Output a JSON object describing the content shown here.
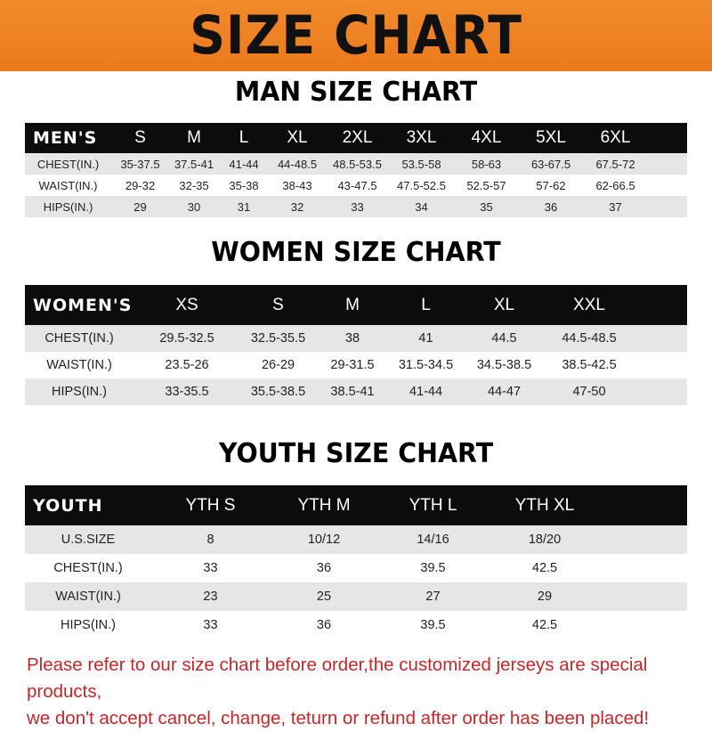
{
  "banner_title": "SIZE CHART",
  "men": {
    "title": "MAN SIZE CHART",
    "header": [
      "MEN'S",
      "S",
      "M",
      "L",
      "XL",
      "2XL",
      "3XL",
      "4XL",
      "5XL",
      "6XL"
    ],
    "rows": [
      [
        "CHEST(IN.)",
        "35-37.5",
        "37.5-41",
        "41-44",
        "44-48.5",
        "48.5-53.5",
        "53.5-58",
        "58-63",
        "63-67.5",
        "67.5-72"
      ],
      [
        "WAIST(IN.)",
        "29-32",
        "32-35",
        "35-38",
        "38-43",
        "43-47.5",
        "47.5-52.5",
        "52.5-57",
        "57-62",
        "62-66.5"
      ],
      [
        "HIPS(IN.)",
        "29",
        "30",
        "31",
        "32",
        "33",
        "34",
        "35",
        "36",
        "37"
      ]
    ]
  },
  "women": {
    "title": "WOMEN SIZE CHART",
    "header": [
      "WOMEN'S",
      "XS",
      "S",
      "M",
      "L",
      "XL",
      "XXL"
    ],
    "rows": [
      [
        "CHEST(IN.)",
        "29.5-32.5",
        "32.5-35.5",
        "38",
        "41",
        "44.5",
        "44.5-48.5"
      ],
      [
        "WAIST(IN.)",
        "23.5-26",
        "26-29",
        "29-31.5",
        "31.5-34.5",
        "34.5-38.5",
        "38.5-42.5"
      ],
      [
        "HIPS(IN.)",
        "33-35.5",
        "35.5-38.5",
        "38.5-41",
        "41-44",
        "44-47",
        "47-50"
      ]
    ]
  },
  "youth": {
    "title": "YOUTH SIZE CHART",
    "header": [
      "YOUTH",
      "YTH S",
      "YTH M",
      "YTH L",
      "YTH XL"
    ],
    "rows": [
      [
        "U.S.SIZE",
        "8",
        "10/12",
        "14/16",
        "18/20"
      ],
      [
        "CHEST(IN.)",
        "33",
        "36",
        "39.5",
        "42.5"
      ],
      [
        "WAIST(IN.)",
        "23",
        "25",
        "27",
        "29"
      ],
      [
        "HIPS(IN.)",
        "33",
        "36",
        "39.5",
        "42.5"
      ]
    ]
  },
  "notice": [
    "Please refer to our size chart before order,the customized jerseys are special products,",
    "we don't accept cancel, change, teturn or refund after order has been placed!"
  ],
  "colors": {
    "banner": "#ec7a1c",
    "header_row": "#0d0b0b",
    "stripe": "#e6e6e6",
    "notice": "#c0282b"
  }
}
